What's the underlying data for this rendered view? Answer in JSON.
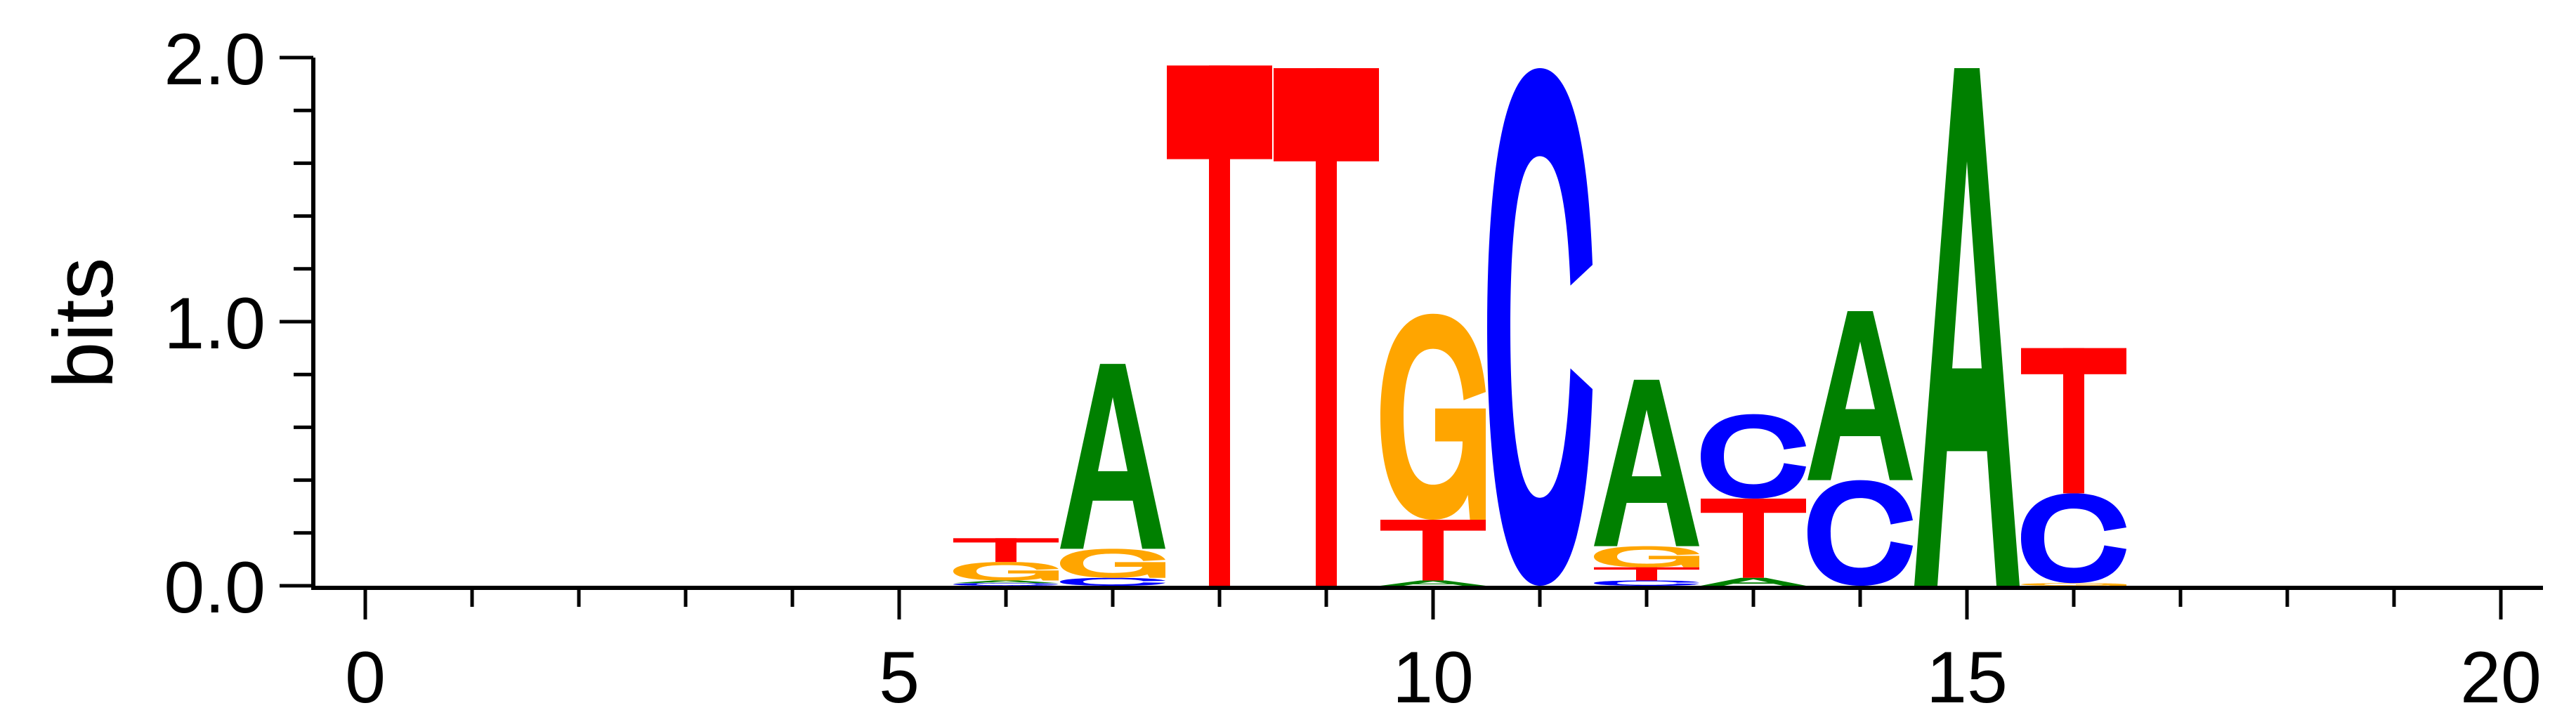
{
  "chart_data": {
    "type": "sequence-logo",
    "ylabel": "bits",
    "xlabel": "",
    "title": "",
    "xlim": [
      0,
      20
    ],
    "ylim": [
      0,
      2.0
    ],
    "x_ticks": [
      "0",
      "5",
      "10",
      "15",
      "20"
    ],
    "y_ticks": [
      "0.0",
      "1.0",
      "2.0"
    ],
    "colors": {
      "A": "#008000",
      "C": "#0000ff",
      "G": "#ffa500",
      "T": "#ff0000"
    },
    "positions": [
      {
        "x": 6,
        "letters": [
          {
            "letter": "C",
            "bits": 0.01
          },
          {
            "letter": "A",
            "bits": 0.01
          },
          {
            "letter": "G",
            "bits": 0.07
          },
          {
            "letter": "T",
            "bits": 0.09
          }
        ]
      },
      {
        "x": 7,
        "letters": [
          {
            "letter": "C",
            "bits": 0.03
          },
          {
            "letter": "G",
            "bits": 0.11
          },
          {
            "letter": "A",
            "bits": 0.7
          }
        ]
      },
      {
        "x": 8,
        "letters": [
          {
            "letter": "T",
            "bits": 1.97
          }
        ]
      },
      {
        "x": 9,
        "letters": [
          {
            "letter": "T",
            "bits": 1.96
          }
        ]
      },
      {
        "x": 10,
        "letters": [
          {
            "letter": "A",
            "bits": 0.02
          },
          {
            "letter": "T",
            "bits": 0.23
          },
          {
            "letter": "G",
            "bits": 0.78
          }
        ]
      },
      {
        "x": 11,
        "letters": [
          {
            "letter": "C",
            "bits": 1.96
          }
        ]
      },
      {
        "x": 12,
        "letters": [
          {
            "letter": "C",
            "bits": 0.02
          },
          {
            "letter": "T",
            "bits": 0.05
          },
          {
            "letter": "G",
            "bits": 0.08
          },
          {
            "letter": "A",
            "bits": 0.63
          }
        ]
      },
      {
        "x": 13,
        "letters": [
          {
            "letter": "A",
            "bits": 0.03
          },
          {
            "letter": "T",
            "bits": 0.3
          },
          {
            "letter": "C",
            "bits": 0.32
          }
        ]
      },
      {
        "x": 14,
        "letters": [
          {
            "letter": "C",
            "bits": 0.4
          },
          {
            "letter": "A",
            "bits": 0.64
          }
        ]
      },
      {
        "x": 15,
        "letters": [
          {
            "letter": "A",
            "bits": 1.96
          }
        ]
      },
      {
        "x": 16,
        "letters": [
          {
            "letter": "G",
            "bits": 0.01
          },
          {
            "letter": "C",
            "bits": 0.34
          },
          {
            "letter": "T",
            "bits": 0.55
          }
        ]
      }
    ]
  }
}
